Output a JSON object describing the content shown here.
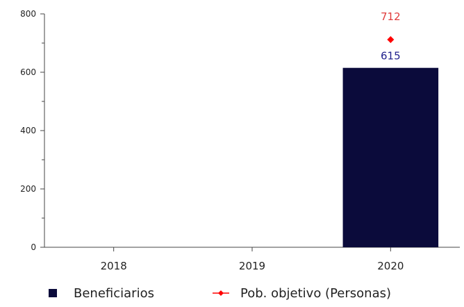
{
  "chart_data": {
    "type": "bar",
    "title": "",
    "xlabel": "",
    "ylabel": "",
    "categories": [
      "2018",
      "2019",
      "2020"
    ],
    "ylim": [
      0,
      800
    ],
    "yticks": [
      0,
      200,
      400,
      600,
      800
    ],
    "grid": false,
    "legend_position": "bottom",
    "series": [
      {
        "name": "Beneficiarios",
        "kind": "bar",
        "color": "#0b0b3b",
        "label_color": "#1f1f8c",
        "values": [
          null,
          null,
          615
        ],
        "labels": [
          "",
          "",
          "615"
        ]
      },
      {
        "name": "Pob. objetivo (Personas)",
        "kind": "point",
        "color": "#ff0000",
        "label_color": "#e03c3c",
        "values": [
          null,
          null,
          712
        ],
        "labels": [
          "",
          "",
          "712"
        ]
      }
    ]
  }
}
